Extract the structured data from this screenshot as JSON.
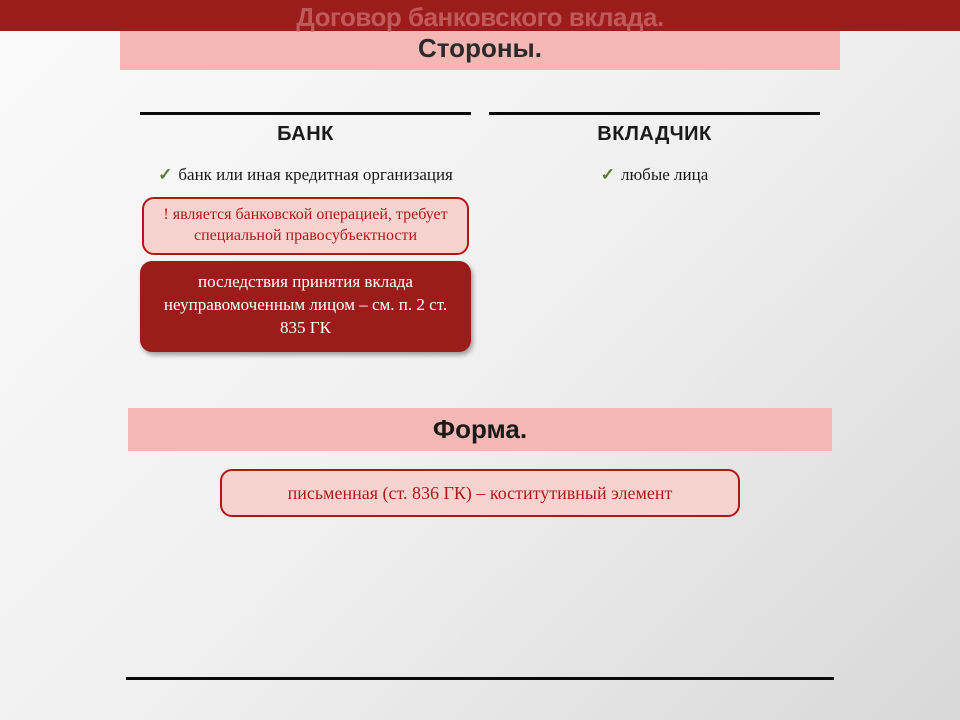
{
  "header": {
    "title_line1": "Договор банковского вклада.",
    "title_line2": "Стороны."
  },
  "columns": {
    "left": {
      "heading": "БАНК",
      "bullet": "банк или иная кредитная организация",
      "note": "! является банковской операцией, требует специальной правосубъектности",
      "dark": "последствия принятия вклада неуправомоченным лицом – см. п. 2 ст. 835 ГК"
    },
    "right": {
      "heading": "ВКЛАДЧИК",
      "bullet": "любые лица"
    }
  },
  "section2": {
    "title": "Форма.",
    "box": "письменная (ст. 836 ГК) – коститутивный элемент"
  },
  "colors": {
    "dark_red": "#9c1b1b",
    "light_pink": "#f4b7b3",
    "note_bg": "#f7d3d0",
    "note_border": "#b01818",
    "check": "#5a7a32",
    "title_fade": "#c05a5a"
  }
}
